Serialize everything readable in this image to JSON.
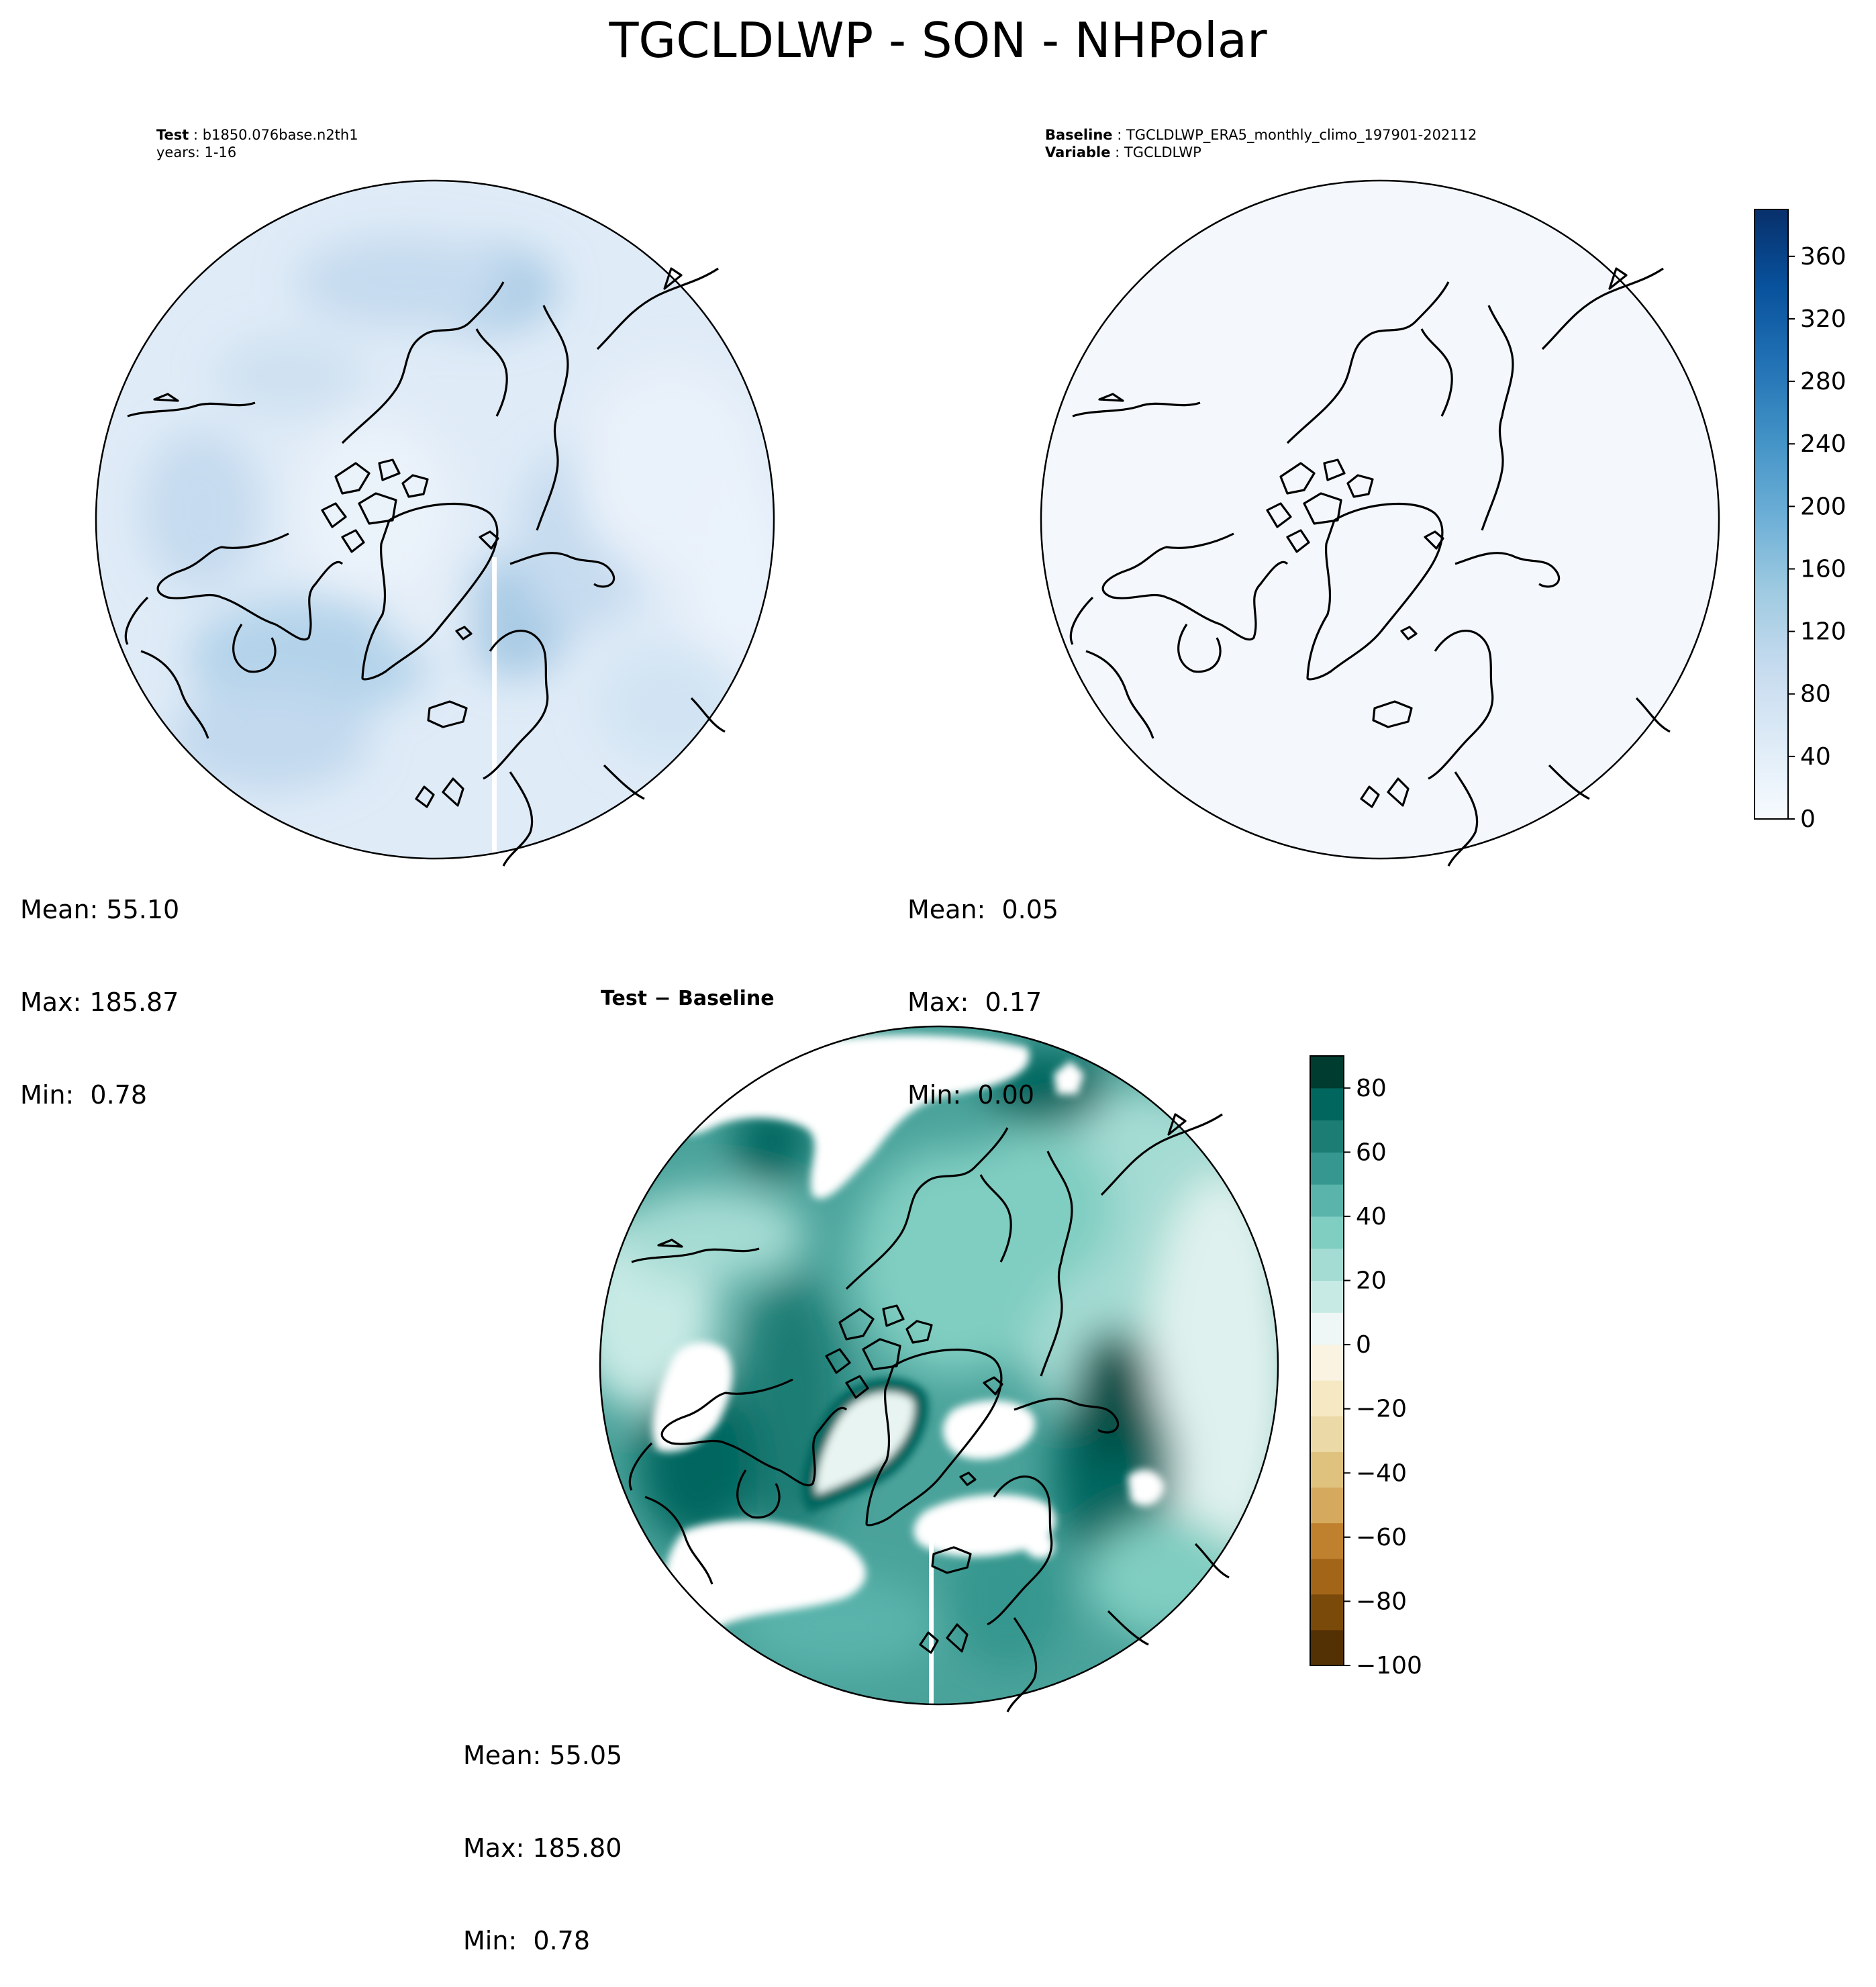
{
  "title": "TGCLDLWP - SON - NHPolar",
  "panels": {
    "test": {
      "label_key": "Test",
      "label_value": "b1850.076base.n2th1",
      "line2": "years: 1-16",
      "stats": {
        "mean": "Mean: 55.10",
        "max": "Max: 185.87",
        "min": "Min:  0.78"
      }
    },
    "baseline": {
      "label_key": "Baseline",
      "label_value": "TGCLDLWP_ERA5_monthly_climo_197901-202112",
      "var_key": "Variable",
      "var_value": "TGCLDLWP",
      "stats": {
        "mean": "Mean:  0.05",
        "max": "Max:  0.17",
        "min": "Min:  0.00"
      }
    },
    "diff": {
      "title": "Test − Baseline",
      "stats": {
        "mean": "Mean: 55.05",
        "max": "Max: 185.80",
        "min": "Min:  0.78"
      }
    }
  },
  "chart_data": [
    {
      "type": "heatmap",
      "panel": "test",
      "projection": "north polar stereographic",
      "colormap": "Blues",
      "colorbar": {
        "min": 0,
        "max": 390,
        "ticks": [
          0,
          40,
          80,
          120,
          160,
          200,
          240,
          280,
          320,
          360
        ]
      },
      "summary": {
        "mean": 55.1,
        "max": 185.87,
        "min": 0.78
      }
    },
    {
      "type": "heatmap",
      "panel": "baseline",
      "projection": "north polar stereographic",
      "colormap": "Blues",
      "colorbar": {
        "min": 0,
        "max": 390,
        "ticks": [
          0,
          40,
          80,
          120,
          160,
          200,
          240,
          280,
          320,
          360
        ]
      },
      "summary": {
        "mean": 0.05,
        "max": 0.17,
        "min": 0.0
      }
    },
    {
      "type": "heatmap",
      "panel": "diff",
      "projection": "north polar stereographic",
      "colormap": "BrBG",
      "colorbar": {
        "min": -100,
        "max": 90,
        "ticks": [
          -100,
          -80,
          -60,
          -40,
          -20,
          0,
          20,
          40,
          60,
          80
        ],
        "tick_labels": [
          "−100",
          "−80",
          "−60",
          "−40",
          "−20",
          "0",
          "20",
          "40",
          "60",
          "80"
        ]
      },
      "summary": {
        "mean": 55.05,
        "max": 185.8,
        "min": 0.78
      }
    }
  ],
  "colors": {
    "blues": [
      "#f7fbff",
      "#deebf7",
      "#c6dbef",
      "#9ecae1",
      "#6baed6",
      "#4292c6",
      "#2171b5",
      "#08519c",
      "#08306b"
    ],
    "brbg_neg": [
      "#543005",
      "#7a4a0b",
      "#a36518",
      "#bf812d",
      "#d5aa5f",
      "#dfc27d",
      "#ecd9a8",
      "#f6e8c3",
      "#faf3e2"
    ],
    "brbg_pos": [
      "#eef7f5",
      "#c7eae5",
      "#a4dbd3",
      "#80cdc1",
      "#5ab4ac",
      "#35978f",
      "#1b7d74",
      "#01665e",
      "#003c30"
    ]
  }
}
